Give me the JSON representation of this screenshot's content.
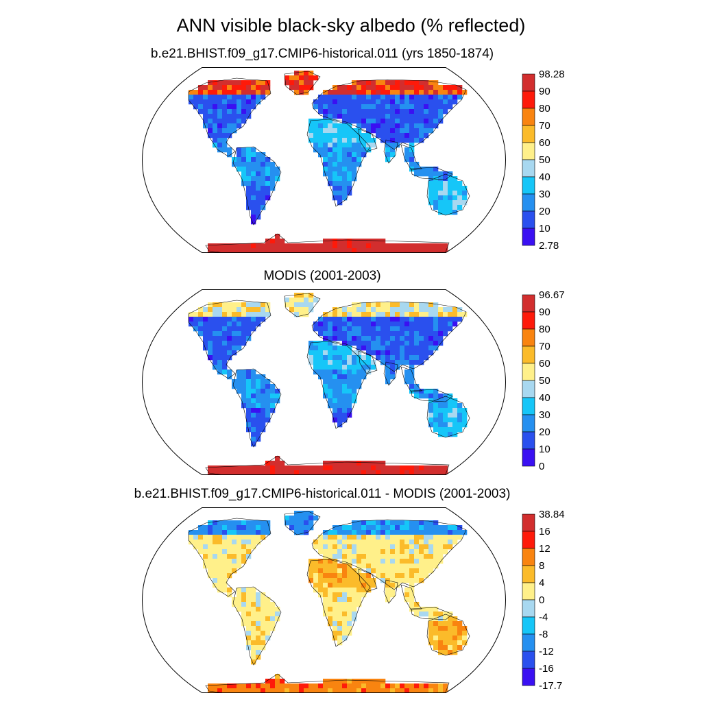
{
  "title": "ANN visible black-sky albedo (% reflected)",
  "colors": {
    "abs_scale": [
      "#3a10f2",
      "#2a50ee",
      "#2590f0",
      "#16c6f8",
      "#a8d8f0",
      "#fff08a",
      "#fbbb2a",
      "#f98410",
      "#fe1a0a",
      "#d22e2e"
    ],
    "diff_scale": [
      "#3a10f2",
      "#2a50ee",
      "#2590f0",
      "#16c6f8",
      "#a8d8f0",
      "#fff08a",
      "#fbbb2a",
      "#f98410",
      "#fe1a0a",
      "#d22e2e"
    ]
  },
  "panels": [
    {
      "title": "b.e21.BHIST.f09_g17.CMIP6-historical.011 (yrs 1850-1874)",
      "colorbar_labels": [
        "98.28",
        "90",
        "80",
        "70",
        "60",
        "50",
        "40",
        "30",
        "20",
        "10",
        "2.78"
      ],
      "fill_pattern": "model",
      "region_levels": {
        "land": 1,
        "tropics": 2,
        "desert": 3,
        "arctic": 9,
        "antarctica": 9
      }
    },
    {
      "title": "MODIS (2001-2003)",
      "colorbar_labels": [
        "96.67",
        "90",
        "80",
        "70",
        "60",
        "50",
        "40",
        "30",
        "20",
        "10",
        "0"
      ],
      "fill_pattern": "obs",
      "region_levels": {
        "land": 1,
        "tropics": 2,
        "desert": 3,
        "arctic": 6,
        "antarctica": 9
      }
    },
    {
      "title": "b.e21.BHIST.f09_g17.CMIP6-historical.011 - MODIS (2001-2003)",
      "colorbar_labels": [
        "38.84",
        "16",
        "12",
        "8",
        "4",
        "0",
        "-4",
        "-8",
        "-12",
        "-16",
        "-17.7"
      ],
      "fill_pattern": "diff",
      "region_levels": {
        "land": 5,
        "tropics": 5,
        "desert": 6,
        "arctic": 2,
        "antarctica": 7
      }
    }
  ]
}
